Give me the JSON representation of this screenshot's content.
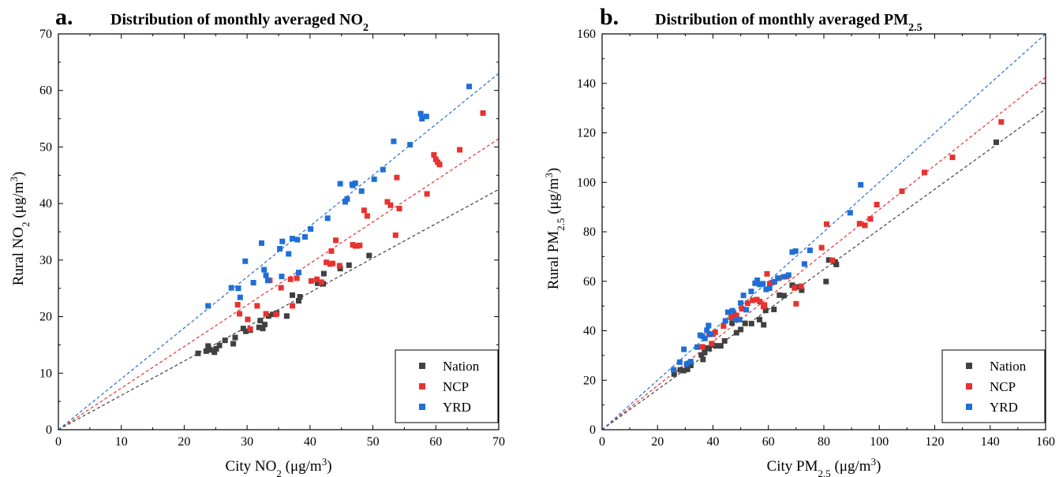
{
  "chart_data": [
    {
      "type": "scatter",
      "panel_label": "a.",
      "title": "Distribution of monthly averaged NO2",
      "title_main": "Distribution of monthly averaged NO",
      "title_sub": "2",
      "xlabel": "City NO2 (μg/m3)",
      "xlabel_main": "City NO",
      "xlabel_sub": "2",
      "xlabel_unit": " (μg/m",
      "xlabel_sup": "3",
      "xlabel_end": ")",
      "ylabel": "Rural NO2 (μg/m3)",
      "ylabel_main": "Rural NO",
      "ylabel_sub": "2",
      "ylabel_unit": " (μg/m",
      "ylabel_sup": "3",
      "ylabel_end": ")",
      "xlim": [
        0,
        70
      ],
      "ylim": [
        0,
        70
      ],
      "xticks": [
        0,
        10,
        20,
        30,
        40,
        50,
        60,
        70
      ],
      "yticks": [
        0,
        10,
        20,
        30,
        40,
        50,
        60,
        70
      ],
      "grid": false,
      "legend_position": "bottom-right",
      "series": [
        {
          "name": "Nation",
          "color": "#404040",
          "slope": 0.607,
          "x": [
            22.2,
            23.5,
            23.8,
            24.2,
            24.8,
            25.1,
            25.6,
            26.5,
            27.8,
            28.1,
            29.4,
            29.8,
            30.5,
            31.9,
            32.1,
            32.5,
            32.8,
            33.4,
            34.1,
            34.7,
            36.3,
            37.2,
            38.2,
            38.4,
            41.2,
            42.1,
            42.2,
            44.8,
            46.2,
            49.4
          ],
          "y": [
            13.5,
            13.9,
            14.8,
            14.1,
            13.7,
            14.3,
            14.9,
            15.8,
            15.2,
            16.3,
            17.9,
            17.4,
            17.6,
            18.1,
            19.3,
            17.9,
            18.6,
            20.1,
            20.4,
            20.6,
            20.1,
            23.8,
            22.8,
            23.5,
            25.9,
            25.8,
            27.6,
            28.5,
            29.1,
            30.8
          ]
        },
        {
          "name": "NCP",
          "color": "#e8322f",
          "slope": 0.735,
          "x": [
            28.5,
            28.8,
            30.1,
            30.5,
            31.6,
            33.0,
            33.6,
            34.6,
            35.4,
            36.9,
            37.2,
            37.9,
            40.2,
            41.1,
            41.8,
            42.6,
            43.2,
            43.4,
            43.6,
            44.1,
            44.7,
            46.8,
            47.2,
            47.5,
            47.9,
            48.6,
            49.1,
            52.3,
            52.8,
            53.6,
            53.8,
            54.2,
            58.6,
            59.7,
            60.0,
            60.3,
            60.6,
            63.8,
            67.5
          ],
          "y": [
            22.1,
            20.5,
            19.5,
            17.8,
            21.9,
            20.5,
            26.4,
            20.4,
            25.1,
            26.6,
            21.9,
            26.8,
            26.3,
            26.6,
            26.1,
            29.6,
            29.3,
            31.6,
            29.4,
            33.5,
            29.0,
            32.7,
            32.5,
            32.5,
            32.6,
            38.8,
            37.8,
            40.3,
            39.7,
            34.4,
            44.6,
            39.1,
            41.7,
            48.6,
            47.8,
            47.3,
            46.9,
            49.5,
            56.0
          ]
        },
        {
          "name": "YRD",
          "color": "#1f6fd6",
          "slope": 0.9,
          "x": [
            23.8,
            27.5,
            28.6,
            28.9,
            29.7,
            31.0,
            32.3,
            32.7,
            33.0,
            33.3,
            35.2,
            35.5,
            35.6,
            36.6,
            37.2,
            38.0,
            38.2,
            39.2,
            40.1,
            42.8,
            44.8,
            45.6,
            45.9,
            46.7,
            46.8,
            47.2,
            48.2,
            50.2,
            51.6,
            53.3,
            55.9,
            57.6,
            57.8,
            58.5,
            65.3
          ],
          "y": [
            21.9,
            25.1,
            25.0,
            23.4,
            29.8,
            26.0,
            33.0,
            28.3,
            27.3,
            26.4,
            32.0,
            27.1,
            33.3,
            31.1,
            33.8,
            33.6,
            27.8,
            34.1,
            35.5,
            37.4,
            43.5,
            40.3,
            40.8,
            43.4,
            43.2,
            43.6,
            42.2,
            44.3,
            46.0,
            51.0,
            50.4,
            55.9,
            55.0,
            55.4,
            60.7
          ]
        }
      ]
    },
    {
      "type": "scatter",
      "panel_label": "b.",
      "title": "Distribution of monthly averaged PM2.5",
      "title_main": "Distribution of monthly averaged PM",
      "title_sub": "2.5",
      "xlabel": "City PM2.5 (μg/m3)",
      "xlabel_main": "City PM",
      "xlabel_sub": "2.5",
      "xlabel_unit": " (μg/m",
      "xlabel_sup": "3",
      "xlabel_end": ")",
      "ylabel": "Rural PM2.5 (μg/m3)",
      "ylabel_main": "Rural PM",
      "ylabel_sub": "2.5",
      "ylabel_unit": " (μg/m",
      "ylabel_sup": "3",
      "ylabel_end": ")",
      "xlim": [
        0,
        160
      ],
      "ylim": [
        0,
        160
      ],
      "xticks": [
        0,
        20,
        40,
        60,
        80,
        100,
        120,
        140,
        160
      ],
      "yticks": [
        0,
        20,
        40,
        60,
        80,
        100,
        120,
        140,
        160
      ],
      "grid": false,
      "legend_position": "bottom-right",
      "series": [
        {
          "name": "Nation",
          "color": "#404040",
          "slope": 0.81,
          "x": [
            26.0,
            28.2,
            29.5,
            30.8,
            31.2,
            32.0,
            35.8,
            36.4,
            37.0,
            37.8,
            38.6,
            39.8,
            41.2,
            42.8,
            44.2,
            46.9,
            48.5,
            50.0,
            51.6,
            53.9,
            56.8,
            58.3,
            59.0,
            62.0,
            64.0,
            65.6,
            68.6,
            70.2,
            72.0,
            80.8,
            81.8,
            84.1,
            84.5,
            142.2
          ],
          "y": [
            22.5,
            24.2,
            23.9,
            24.4,
            26.8,
            26.0,
            30.2,
            28.4,
            31.2,
            33.0,
            32.8,
            34.2,
            33.9,
            33.9,
            35.9,
            43.1,
            39.2,
            40.5,
            43.0,
            42.9,
            44.5,
            42.4,
            48.2,
            48.6,
            54.4,
            54.2,
            58.4,
            57.7,
            56.4,
            59.9,
            68.6,
            67.8,
            66.8,
            116.2
          ]
        },
        {
          "name": "NCP",
          "color": "#e8322f",
          "slope": 0.89,
          "x": [
            36.2,
            38.6,
            39.5,
            40.0,
            40.8,
            43.8,
            46.6,
            47.5,
            48.5,
            50.4,
            52.5,
            54.3,
            55.8,
            56.9,
            58.2,
            58.6,
            59.5,
            60.5,
            61.4,
            63.8,
            66.6,
            69.4,
            70.0,
            71.8,
            79.2,
            81.0,
            83.1,
            92.9,
            94.8,
            96.8,
            99.1,
            108.2,
            116.3,
            126.4,
            144.0
          ],
          "y": [
            33.5,
            38.5,
            34.8,
            38.6,
            39.4,
            41.9,
            45.4,
            46.8,
            46.2,
            48.9,
            51.1,
            52.3,
            52.6,
            51.8,
            49.8,
            50.4,
            63.0,
            58.9,
            59.5,
            61.2,
            61.9,
            57.3,
            50.9,
            58.0,
            73.6,
            83.1,
            68.5,
            83.3,
            82.6,
            85.2,
            91.0,
            96.4,
            104.0,
            110.1,
            124.4
          ]
        },
        {
          "name": "YRD",
          "color": "#1f6fd6",
          "slope": 1.0,
          "x": [
            25.8,
            28.0,
            29.5,
            30.5,
            32.0,
            34.3,
            35.4,
            36.2,
            37.1,
            37.8,
            38.4,
            39.2,
            44.5,
            45.4,
            47.0,
            48.4,
            49.6,
            50.0,
            51.0,
            52.0,
            53.8,
            55.2,
            56.0,
            56.9,
            58.0,
            59.2,
            60.4,
            62.2,
            63.4,
            65.5,
            67.3,
            68.6,
            69.8,
            73.0,
            75.0,
            89.5,
            93.3
          ],
          "y": [
            24.2,
            27.3,
            32.5,
            26.5,
            27.5,
            33.4,
            38.2,
            37.8,
            36.9,
            40.2,
            42.1,
            38.7,
            44.0,
            47.5,
            48.1,
            44.5,
            44.5,
            51.2,
            54.3,
            48.5,
            55.9,
            59.2,
            60.4,
            58.7,
            59.0,
            56.7,
            57.2,
            59.8,
            61.3,
            61.8,
            62.5,
            71.8,
            72.2,
            67.0,
            72.5,
            87.7,
            99.0
          ]
        }
      ]
    }
  ]
}
